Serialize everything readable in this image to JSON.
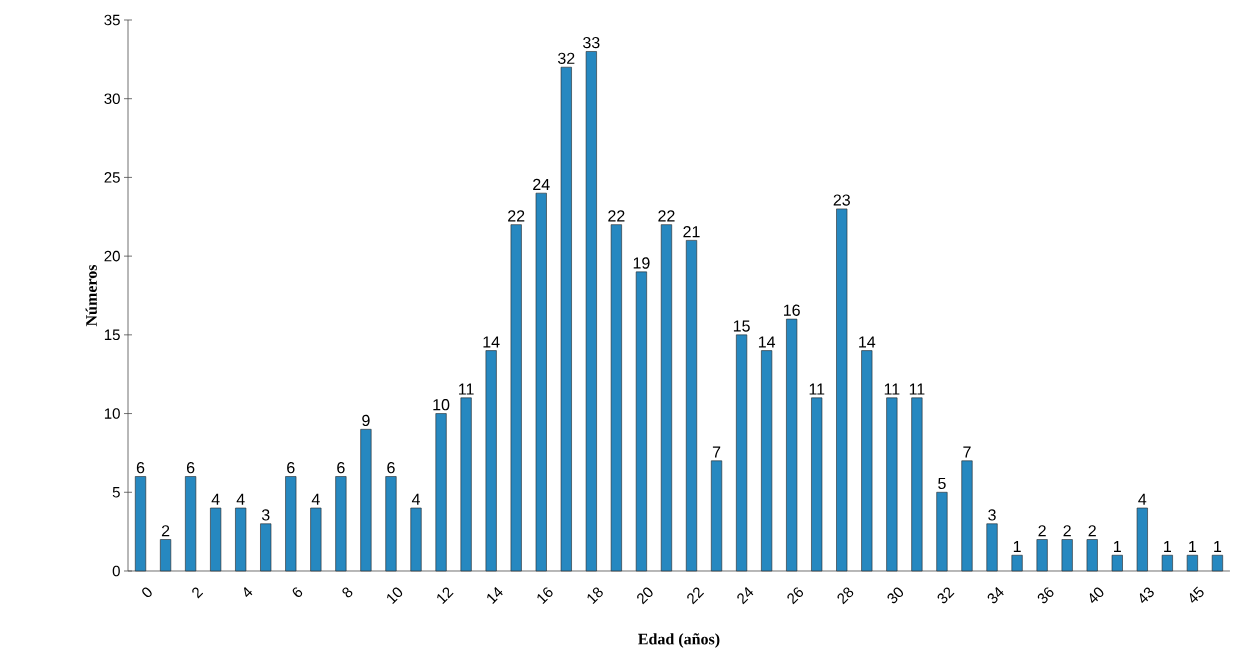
{
  "chart_data": {
    "type": "bar",
    "xlabel": "Edad (años)",
    "ylabel": "Números",
    "categories": [
      "0",
      null,
      "2",
      null,
      "4",
      null,
      "6",
      null,
      "8",
      null,
      "10",
      null,
      "12",
      null,
      "14",
      null,
      "16",
      null,
      "18",
      null,
      "20",
      null,
      "22",
      null,
      "24",
      null,
      "26",
      null,
      "28",
      null,
      "30",
      null,
      "32",
      null,
      "34",
      null,
      "36",
      null,
      "40",
      null,
      "43",
      null,
      "45",
      null
    ],
    "values": [
      6,
      2,
      6,
      4,
      4,
      3,
      6,
      4,
      6,
      9,
      6,
      4,
      10,
      11,
      14,
      22,
      24,
      32,
      33,
      22,
      19,
      22,
      21,
      7,
      15,
      14,
      16,
      11,
      23,
      14,
      11,
      11,
      5,
      7,
      3,
      1,
      2,
      2,
      2,
      1,
      4,
      1,
      1,
      1
    ],
    "color": "#2688c0",
    "data_labels": true,
    "ylim": [
      0,
      35
    ],
    "yticks": [
      0,
      5,
      10,
      15,
      20,
      25,
      30,
      35
    ]
  }
}
